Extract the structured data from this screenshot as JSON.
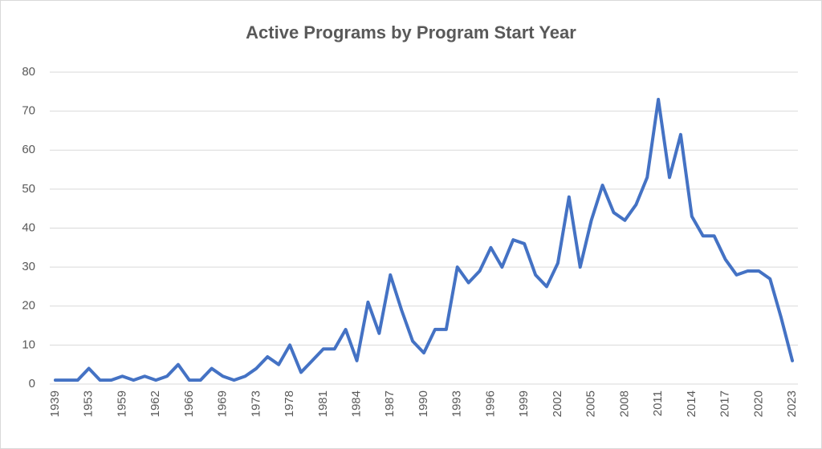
{
  "chart_data": {
    "type": "line",
    "title": "Active Programs by Program Start Year",
    "categories": [
      "1939",
      null,
      null,
      "1953",
      null,
      null,
      "1959",
      null,
      null,
      "1962",
      null,
      null,
      "1966",
      null,
      null,
      "1969",
      null,
      null,
      "1973",
      null,
      null,
      "1978",
      null,
      null,
      "1981",
      null,
      null,
      "1984",
      null,
      null,
      "1987",
      null,
      null,
      "1990",
      null,
      null,
      "1993",
      null,
      null,
      "1996",
      null,
      null,
      "1999",
      null,
      null,
      "2002",
      null,
      null,
      "2005",
      null,
      null,
      "2008",
      null,
      null,
      "2011",
      null,
      null,
      "2014",
      null,
      null,
      "2017",
      null,
      null,
      "2020",
      null,
      null,
      "2023"
    ],
    "values": [
      1,
      1,
      1,
      4,
      1,
      1,
      2,
      1,
      2,
      1,
      2,
      5,
      1,
      1,
      4,
      2,
      1,
      2,
      4,
      7,
      5,
      10,
      3,
      6,
      9,
      9,
      14,
      6,
      21,
      13,
      28,
      19,
      11,
      8,
      14,
      14,
      30,
      26,
      29,
      35,
      30,
      37,
      36,
      28,
      25,
      31,
      48,
      30,
      42,
      51,
      44,
      42,
      46,
      53,
      73,
      53,
      64,
      43,
      38,
      38,
      32,
      28,
      29,
      29,
      27,
      17,
      6
    ],
    "color": "#4472c4",
    "ylim": [
      0,
      80
    ],
    "yticks": [
      0,
      10,
      20,
      30,
      40,
      50,
      60,
      70,
      80
    ],
    "grid": true
  }
}
